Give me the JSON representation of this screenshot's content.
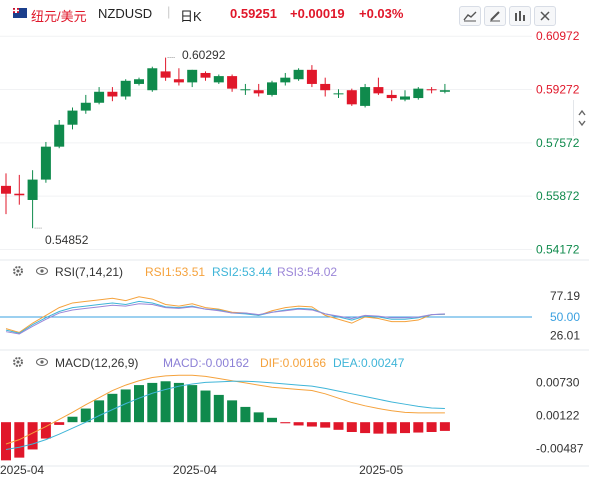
{
  "header": {
    "pair_name": "纽元/美元",
    "symbol": "NZDUSD",
    "period": "日K",
    "price": "0.59251",
    "change": "+0.00019",
    "change_pct": "+0.03%",
    "up_color": "#e0172a",
    "down_color": "#0f8a4c"
  },
  "toolbar": {
    "icons": [
      "line-chart-icon",
      "pencil-icon",
      "bar-settings-icon",
      "close-icon"
    ]
  },
  "side_scroll_icon": "chevron-up-down-icon",
  "rsi": {
    "title": "RSI(7,14,21)",
    "rsi1_label": "RSI1:53.51",
    "rsi2_label": "RSI2:53.44",
    "rsi3_label": "RSI3:54.02",
    "colors": {
      "rsi1": "#f5a23c",
      "rsi2": "#3fb5d8",
      "rsi3": "#9b86d8",
      "ref": "#3aa0e0"
    },
    "ticks": [
      "77.19",
      "50.00",
      "26.01"
    ]
  },
  "macd": {
    "title": "MACD(12,26,9)",
    "macd_label": "MACD:-0.00162",
    "dif_label": "DIF:0.00166",
    "dea_label": "DEA:0.00247",
    "colors": {
      "macd": "#8b7fd6",
      "dif": "#f5a23c",
      "dea": "#3fb5d8"
    },
    "ticks": [
      "0.00730",
      "0.00122",
      "-0.00487"
    ]
  },
  "x_axis": {
    "labels": [
      "2025-04",
      "2025-04",
      "2025-05"
    ]
  },
  "chart_data": {
    "type": "candlestick",
    "ylim": [
      0.539,
      0.6117
    ],
    "y_ticks": [
      "0.60972",
      "0.59272",
      "0.57572",
      "0.55872",
      "0.54172"
    ],
    "annotations": {
      "high": "0.60292",
      "low": "0.54852"
    },
    "candles": [
      {
        "o": 0.562,
        "h": 0.566,
        "l": 0.553,
        "c": 0.5595
      },
      {
        "o": 0.5595,
        "h": 0.5655,
        "l": 0.556,
        "c": 0.559
      },
      {
        "o": 0.5575,
        "h": 0.567,
        "l": 0.5485,
        "c": 0.564
      },
      {
        "o": 0.564,
        "h": 0.576,
        "l": 0.563,
        "c": 0.5745
      },
      {
        "o": 0.5745,
        "h": 0.583,
        "l": 0.574,
        "c": 0.5815
      },
      {
        "o": 0.5815,
        "h": 0.587,
        "l": 0.58,
        "c": 0.586
      },
      {
        "o": 0.586,
        "h": 0.591,
        "l": 0.585,
        "c": 0.5885
      },
      {
        "o": 0.5885,
        "h": 0.5935,
        "l": 0.588,
        "c": 0.592
      },
      {
        "o": 0.592,
        "h": 0.5935,
        "l": 0.589,
        "c": 0.5905
      },
      {
        "o": 0.5905,
        "h": 0.596,
        "l": 0.5895,
        "c": 0.5955
      },
      {
        "o": 0.5945,
        "h": 0.5965,
        "l": 0.594,
        "c": 0.596
      },
      {
        "o": 0.5925,
        "h": 0.6,
        "l": 0.592,
        "c": 0.5995
      },
      {
        "o": 0.5985,
        "h": 0.6029,
        "l": 0.5955,
        "c": 0.5965
      },
      {
        "o": 0.596,
        "h": 0.5995,
        "l": 0.594,
        "c": 0.595
      },
      {
        "o": 0.595,
        "h": 0.599,
        "l": 0.5935,
        "c": 0.599
      },
      {
        "o": 0.598,
        "h": 0.5985,
        "l": 0.5955,
        "c": 0.5965
      },
      {
        "o": 0.595,
        "h": 0.5975,
        "l": 0.5945,
        "c": 0.597
      },
      {
        "o": 0.597,
        "h": 0.5975,
        "l": 0.592,
        "c": 0.593
      },
      {
        "o": 0.5927,
        "h": 0.5945,
        "l": 0.591,
        "c": 0.5928
      },
      {
        "o": 0.5925,
        "h": 0.5945,
        "l": 0.5905,
        "c": 0.5915
      },
      {
        "o": 0.591,
        "h": 0.5955,
        "l": 0.5905,
        "c": 0.595
      },
      {
        "o": 0.595,
        "h": 0.598,
        "l": 0.594,
        "c": 0.5965
      },
      {
        "o": 0.596,
        "h": 0.5995,
        "l": 0.5955,
        "c": 0.599
      },
      {
        "o": 0.599,
        "h": 0.6005,
        "l": 0.5935,
        "c": 0.5945
      },
      {
        "o": 0.5945,
        "h": 0.5965,
        "l": 0.5905,
        "c": 0.5925
      },
      {
        "o": 0.5915,
        "h": 0.5928,
        "l": 0.59,
        "c": 0.5915
      },
      {
        "o": 0.5925,
        "h": 0.593,
        "l": 0.5875,
        "c": 0.588
      },
      {
        "o": 0.5875,
        "h": 0.5945,
        "l": 0.587,
        "c": 0.5935
      },
      {
        "o": 0.5935,
        "h": 0.5965,
        "l": 0.591,
        "c": 0.5915
      },
      {
        "o": 0.591,
        "h": 0.5925,
        "l": 0.589,
        "c": 0.59
      },
      {
        "o": 0.5895,
        "h": 0.5925,
        "l": 0.589,
        "c": 0.5905
      },
      {
        "o": 0.59,
        "h": 0.5935,
        "l": 0.5895,
        "c": 0.593
      },
      {
        "o": 0.5928,
        "h": 0.5935,
        "l": 0.5915,
        "c": 0.5926
      },
      {
        "o": 0.592,
        "h": 0.5945,
        "l": 0.5915,
        "c": 0.5925
      }
    ],
    "rsi_series": [
      {
        "name": "RSI1",
        "values": [
          35,
          30,
          42,
          52,
          62,
          68,
          70,
          72,
          74,
          71,
          76,
          73,
          66,
          64,
          67,
          62,
          60,
          56,
          55,
          52,
          58,
          62,
          64,
          63,
          52,
          47,
          42,
          50,
          48,
          44,
          44,
          46,
          53,
          53.51
        ]
      },
      {
        "name": "RSI2",
        "values": [
          33,
          29,
          40,
          49,
          57,
          62,
          64,
          66,
          68,
          66,
          70,
          68,
          63,
          62,
          64,
          60,
          59,
          55,
          54,
          52,
          56,
          59,
          61,
          60,
          54,
          50,
          46,
          51,
          50,
          47,
          47,
          49,
          53,
          53.44
        ]
      },
      {
        "name": "RSI3",
        "values": [
          31,
          28,
          38,
          47,
          55,
          59,
          61,
          63,
          65,
          64,
          67,
          66,
          62,
          61,
          63,
          60,
          58,
          55,
          55,
          53,
          56,
          58,
          60,
          59,
          54,
          51,
          48,
          52,
          51,
          49,
          49,
          50,
          53,
          54.02
        ]
      }
    ],
    "macd_hist": [
      -0.007,
      -0.0065,
      -0.005,
      -0.003,
      -0.0005,
      0.001,
      0.0025,
      0.004,
      0.0052,
      0.006,
      0.0068,
      0.0072,
      0.0075,
      0.0072,
      0.0068,
      0.0058,
      0.005,
      0.004,
      0.0028,
      0.0018,
      0.0008,
      -0.0002,
      -0.0006,
      -0.0008,
      -0.001,
      -0.0014,
      -0.0018,
      -0.002,
      -0.0021,
      -0.0021,
      -0.002,
      -0.0019,
      -0.0018,
      -0.0016
    ],
    "dif_series": [
      -0.004,
      -0.0032,
      -0.002,
      -0.0008,
      0.0005,
      0.0018,
      0.0032,
      0.0045,
      0.0058,
      0.0068,
      0.0076,
      0.0082,
      0.0085,
      0.0086,
      0.0086,
      0.0084,
      0.008,
      0.0076,
      0.0072,
      0.0068,
      0.0064,
      0.0062,
      0.006,
      0.0058,
      0.0052,
      0.0044,
      0.0036,
      0.003,
      0.0025,
      0.0021,
      0.0018,
      0.0017,
      0.0017,
      0.0017
    ],
    "dea_series": [
      -0.005,
      -0.0046,
      -0.004,
      -0.0032,
      -0.0022,
      -0.0011,
      0.0,
      0.0012,
      0.0023,
      0.0034,
      0.0044,
      0.0053,
      0.006,
      0.0066,
      0.007,
      0.0073,
      0.0074,
      0.0075,
      0.0075,
      0.0074,
      0.0072,
      0.007,
      0.0068,
      0.0066,
      0.0062,
      0.0057,
      0.0052,
      0.0047,
      0.0042,
      0.0037,
      0.0033,
      0.0029,
      0.0026,
      0.0025
    ],
    "macd_range": [
      -0.0073,
      0.0092
    ],
    "rsi_range": [
      10,
      95
    ]
  }
}
